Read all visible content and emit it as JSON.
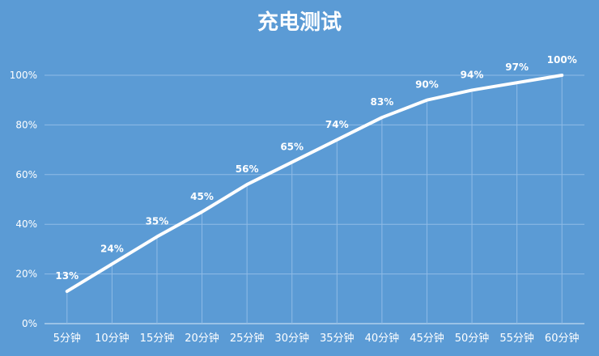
{
  "chart_data": {
    "type": "line",
    "title": "充电测试",
    "xlabel": "",
    "ylabel": "",
    "categories": [
      "5分钟",
      "10分钟",
      "15分钟",
      "20分钟",
      "25分钟",
      "30分钟",
      "35分钟",
      "40分钟",
      "45分钟",
      "50分钟",
      "55分钟",
      "60分钟"
    ],
    "series": [
      {
        "values": [
          13,
          24,
          35,
          45,
          56,
          65,
          74,
          83,
          90,
          94,
          97,
          100
        ],
        "data_labels": [
          "13%",
          "24%",
          "35%",
          "45%",
          "56%",
          "65%",
          "74%",
          "83%",
          "90%",
          "94%",
          "97%",
          "100%"
        ]
      }
    ],
    "ylim": [
      0,
      100
    ],
    "yticks": [
      0,
      20,
      40,
      60,
      80,
      100
    ],
    "ytick_labels": [
      "0%",
      "20%",
      "40%",
      "60%",
      "80%",
      "100%"
    ],
    "grid": true,
    "legend": "none",
    "colors": {
      "background": "#5b9bd5",
      "line": "#ffffff",
      "grid": "#8fbbe6",
      "text": "#ffffff"
    }
  }
}
